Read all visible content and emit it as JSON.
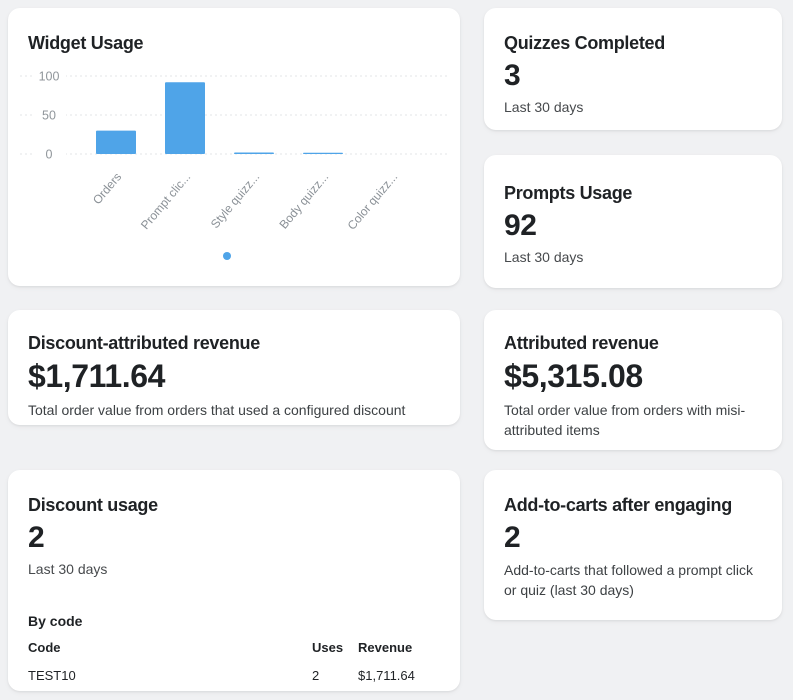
{
  "page": {
    "background": "#f0f1f3"
  },
  "colors": {
    "accent_blue": "#4FA4E8",
    "card_background": "#ffffff",
    "title_text": "#1f2225",
    "muted_text": "#474a4d",
    "axis_text": "#90969b",
    "gridline": "#e3e5e7"
  },
  "cards": {
    "widget_usage": {
      "title": "Widget Usage",
      "chart_data": {
        "type": "bar",
        "categories": [
          "Orders",
          "Prompt clic...",
          "Style quizz...",
          "Body quizz...",
          "Color quizz..."
        ],
        "values": [
          30,
          92,
          2,
          1,
          0
        ],
        "yticks": [
          100,
          50,
          0
        ],
        "ylim": [
          0,
          100
        ],
        "bar_color": "#4FA4E8",
        "grid": "dotted horizontal",
        "legend": "single blue dot centered below chart"
      }
    },
    "quizzes_completed": {
      "title": "Quizzes Completed",
      "value": "3",
      "caption": "Last 30 days"
    },
    "prompts_usage": {
      "title": "Prompts Usage",
      "value": "92",
      "caption": "Last 30 days"
    },
    "discount_attributed_revenue": {
      "title": "Discount-attributed revenue",
      "value": "$1,711.64",
      "description": "Total order value from orders that used a configured discount"
    },
    "attributed_revenue": {
      "title": "Attributed revenue",
      "value": "$5,315.08",
      "description": "Total order value from orders with misi-attributed items"
    },
    "discount_usage": {
      "title": "Discount usage",
      "value": "2",
      "caption": "Last 30 days",
      "by_code": {
        "heading": "By code",
        "columns": [
          "Code",
          "Uses",
          "Revenue"
        ],
        "rows": [
          [
            "TEST10",
            "2",
            "$1,711.64"
          ]
        ]
      }
    },
    "add_to_carts": {
      "title": "Add-to-carts after engaging",
      "value": "2",
      "description": "Add-to-carts that followed a prompt click or quiz (last 30 days)"
    }
  }
}
